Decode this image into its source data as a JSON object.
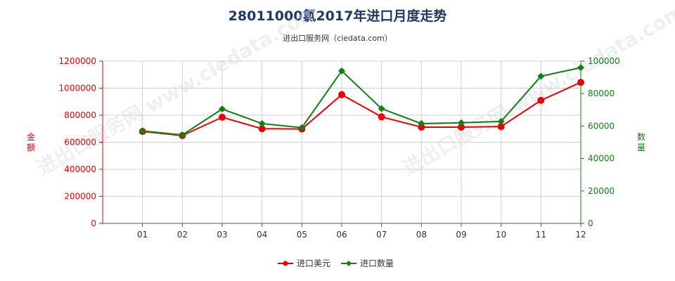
{
  "chart_data": {
    "type": "line",
    "title": "28011000氯2017年进口月度走势",
    "subtitle": "进出口服务网（ciedata.com）",
    "categories": [
      "01",
      "02",
      "03",
      "04",
      "05",
      "06",
      "07",
      "08",
      "09",
      "10",
      "11",
      "12"
    ],
    "series": [
      {
        "name": "进口美元",
        "axis": "left",
        "color": "#ee0000",
        "marker": "circle",
        "values": [
          680000,
          650000,
          785000,
          700000,
          698000,
          952000,
          788000,
          712000,
          712000,
          716000,
          910000,
          1043000
        ]
      },
      {
        "name": "进口数量",
        "axis": "right",
        "color": "#108010",
        "marker": "diamond",
        "values": [
          57000,
          54500,
          70500,
          61500,
          59000,
          94000,
          70700,
          61500,
          62000,
          62800,
          90700,
          96000
        ]
      }
    ],
    "ylabel_left": "金额",
    "ylabel_right": "数量",
    "ylim_left": [
      0,
      1200000
    ],
    "yticks_left": [
      "0",
      "200000",
      "400000",
      "600000",
      "800000",
      "1000000",
      "1200000"
    ],
    "ylim_right": [
      0,
      100000
    ],
    "yticks_right": [
      "0",
      "20000",
      "40000",
      "60000",
      "80000",
      "100000"
    ],
    "left_axis_color": "#ee0000",
    "right_axis_color": "#108010",
    "grid": true,
    "legend_position": "bottom-center",
    "watermark": "进出口服务网 www.ciedata.com"
  }
}
